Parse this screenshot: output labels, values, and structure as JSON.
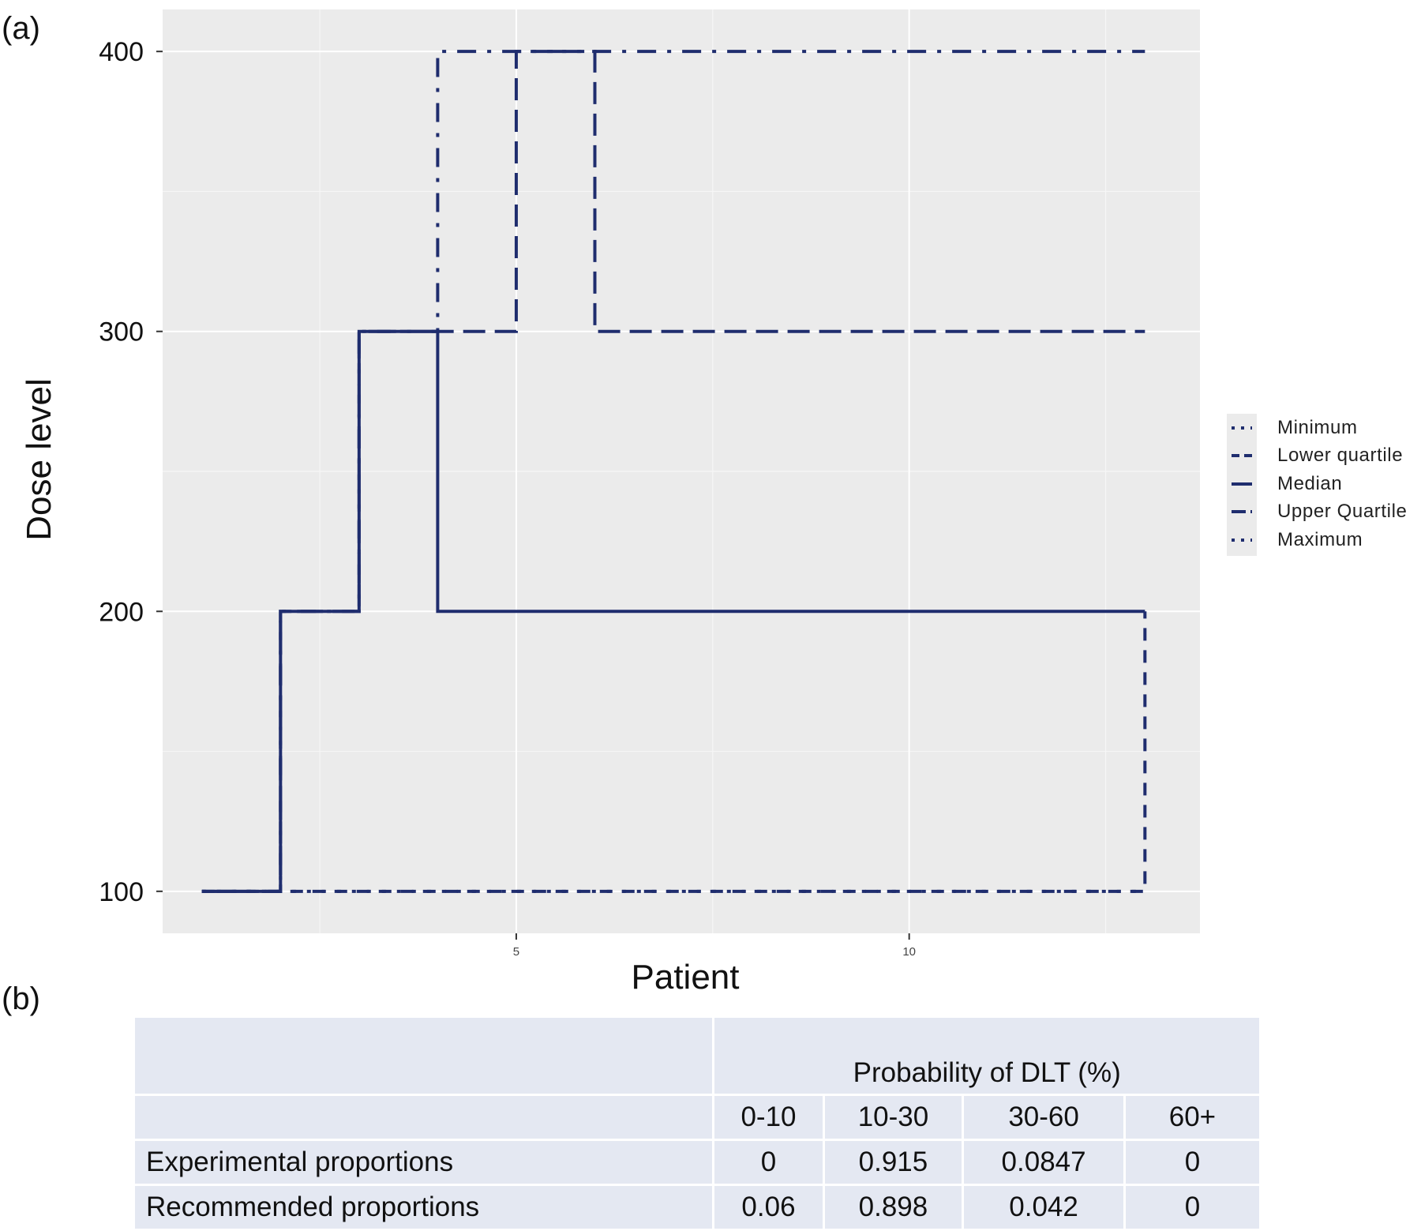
{
  "panel_a_label": "(a)",
  "panel_b_label": "(b)",
  "chart_data": {
    "type": "line",
    "xlabel": "Patient",
    "ylabel": "Dose level",
    "xlim": [
      0.5,
      13.7
    ],
    "ylim": [
      85,
      415
    ],
    "x_ticks": [
      5,
      10
    ],
    "y_ticks": [
      100,
      200,
      300,
      400
    ],
    "grid": true,
    "legend_position": "right",
    "line_color": "#1f2d6e",
    "series": [
      {
        "name": "Minimum",
        "linetype": "dotted",
        "step": true,
        "x": [
          1,
          2,
          3,
          4,
          5,
          6,
          7,
          8,
          9,
          10,
          11,
          12,
          13
        ],
        "y": [
          100,
          100,
          100,
          100,
          100,
          100,
          100,
          100,
          100,
          100,
          100,
          100,
          100
        ]
      },
      {
        "name": "Lower quartile",
        "linetype": "dashed",
        "step": true,
        "x": [
          1,
          2,
          3,
          4,
          5,
          6,
          7,
          8,
          9,
          10,
          11,
          12,
          13
        ],
        "y": [
          100,
          100,
          100,
          100,
          100,
          100,
          100,
          100,
          100,
          100,
          100,
          100,
          200
        ]
      },
      {
        "name": "Median",
        "linetype": "solid",
        "step": true,
        "x": [
          1,
          2,
          3,
          4,
          5,
          6,
          7,
          8,
          9,
          10,
          11,
          12,
          13
        ],
        "y": [
          100,
          200,
          300,
          200,
          200,
          200,
          200,
          200,
          200,
          200,
          200,
          200,
          200
        ]
      },
      {
        "name": "Upper Quartile",
        "linetype": "longdash",
        "step": true,
        "x": [
          1,
          2,
          3,
          4,
          5,
          6,
          7,
          8,
          9,
          10,
          11,
          12,
          13
        ],
        "y": [
          100,
          200,
          300,
          300,
          400,
          300,
          300,
          300,
          300,
          300,
          300,
          300,
          300
        ]
      },
      {
        "name": "Maximum",
        "linetype": "dotdash",
        "step": true,
        "x": [
          1,
          2,
          3,
          4,
          5,
          6,
          7,
          8,
          9,
          10,
          11,
          12,
          13
        ],
        "y": [
          100,
          200,
          300,
          400,
          400,
          400,
          400,
          400,
          400,
          400,
          400,
          400,
          400
        ]
      }
    ]
  },
  "table": {
    "group_header": "Probability of DLT (%)",
    "columns": [
      "0-10",
      "10-30",
      "30-60",
      "60+"
    ],
    "rows": [
      {
        "label": "Experimental proportions",
        "values": [
          "0",
          "0.915",
          "0.0847",
          "0"
        ]
      },
      {
        "label": "Recommended proportions",
        "values": [
          "0.06",
          "0.898",
          "0.042",
          "0"
        ]
      }
    ]
  }
}
